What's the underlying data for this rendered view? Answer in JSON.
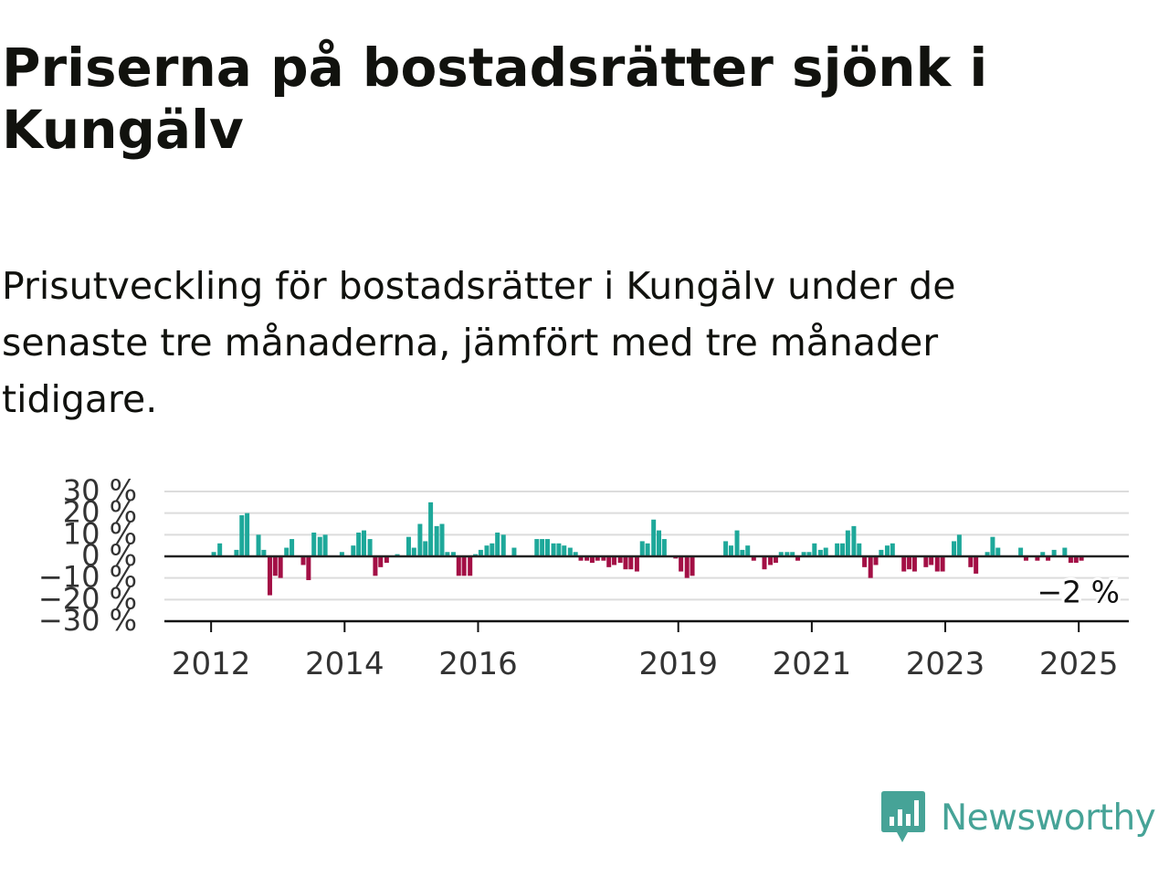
{
  "title": "Priserna på bostadsrätter sjönk i Kungälv",
  "subtitle": "Prisutveckling för bostadsrätter i Kungälv under de senaste tre månaderna, jämfört med tre månader tidigare.",
  "brand": {
    "name": "Newsworthy",
    "icon": "newsworthy-logo-icon",
    "color": "#46a397"
  },
  "colors": {
    "positive": "#1ea89a",
    "negative": "#a30f45",
    "grid": "#dcdcdc",
    "axis": "#111111",
    "text": "#333333"
  },
  "chart_data": {
    "type": "bar",
    "title": "Priserna på bostadsrätter sjönk i Kungälv",
    "subtitle": "Prisutveckling för bostadsrätter i Kungälv under de senaste tre månaderna, jämfört med tre månader tidigare.",
    "xlabel": "",
    "ylabel": "",
    "ylim": [
      -30,
      30
    ],
    "y_ticks": [
      30,
      20,
      10,
      0,
      -10,
      -20,
      -30
    ],
    "y_tick_labels": [
      "30 %",
      "20 %",
      "10 %",
      "0 %",
      "−10 %",
      "−20 %",
      "−30 %"
    ],
    "x_ticks": [
      2012,
      2014,
      2016,
      2019,
      2021,
      2023,
      2025
    ],
    "x_tick_labels": [
      "2012",
      "2014",
      "2016",
      "2019",
      "2021",
      "2023",
      "2025"
    ],
    "x_range": [
      2011.3,
      2025.75
    ],
    "grid": true,
    "legend": "none",
    "series": [
      {
        "values": [
          [
            2012.04,
            2
          ],
          [
            2012.13,
            6
          ],
          [
            2012.38,
            3
          ],
          [
            2012.46,
            19
          ],
          [
            2012.54,
            20
          ],
          [
            2012.71,
            10
          ],
          [
            2012.79,
            3
          ],
          [
            2012.88,
            -18
          ],
          [
            2012.96,
            -9
          ],
          [
            2013.04,
            -10
          ],
          [
            2013.13,
            4
          ],
          [
            2013.21,
            8
          ],
          [
            2013.38,
            -4
          ],
          [
            2013.46,
            -11
          ],
          [
            2013.54,
            11
          ],
          [
            2013.63,
            9
          ],
          [
            2013.71,
            10
          ],
          [
            2013.96,
            2
          ],
          [
            2014.13,
            5
          ],
          [
            2014.21,
            11
          ],
          [
            2014.29,
            12
          ],
          [
            2014.38,
            8
          ],
          [
            2014.46,
            -9
          ],
          [
            2014.54,
            -5
          ],
          [
            2014.63,
            -3
          ],
          [
            2014.79,
            1
          ],
          [
            2014.96,
            9
          ],
          [
            2015.04,
            4
          ],
          [
            2015.13,
            15
          ],
          [
            2015.21,
            7
          ],
          [
            2015.29,
            25
          ],
          [
            2015.38,
            14
          ],
          [
            2015.46,
            15
          ],
          [
            2015.54,
            2
          ],
          [
            2015.63,
            2
          ],
          [
            2015.71,
            -9
          ],
          [
            2015.79,
            -9
          ],
          [
            2015.88,
            -9
          ],
          [
            2015.96,
            1
          ],
          [
            2016.04,
            3
          ],
          [
            2016.13,
            5
          ],
          [
            2016.21,
            6
          ],
          [
            2016.29,
            11
          ],
          [
            2016.38,
            10
          ],
          [
            2016.54,
            4
          ],
          [
            2016.88,
            8
          ],
          [
            2016.96,
            8
          ],
          [
            2017.04,
            8
          ],
          [
            2017.13,
            6
          ],
          [
            2017.21,
            6
          ],
          [
            2017.29,
            5
          ],
          [
            2017.38,
            4
          ],
          [
            2017.46,
            2
          ],
          [
            2017.54,
            -2
          ],
          [
            2017.63,
            -2
          ],
          [
            2017.71,
            -3
          ],
          [
            2017.79,
            -2
          ],
          [
            2017.88,
            -2
          ],
          [
            2017.96,
            -5
          ],
          [
            2018.04,
            -4
          ],
          [
            2018.13,
            -3
          ],
          [
            2018.21,
            -6
          ],
          [
            2018.29,
            -6
          ],
          [
            2018.38,
            -7
          ],
          [
            2018.46,
            7
          ],
          [
            2018.54,
            6
          ],
          [
            2018.63,
            17
          ],
          [
            2018.71,
            12
          ],
          [
            2018.79,
            8
          ],
          [
            2018.96,
            -1
          ],
          [
            2019.04,
            -7
          ],
          [
            2019.13,
            -10
          ],
          [
            2019.21,
            -9
          ],
          [
            2019.71,
            7
          ],
          [
            2019.79,
            5
          ],
          [
            2019.88,
            12
          ],
          [
            2019.96,
            3
          ],
          [
            2020.04,
            5
          ],
          [
            2020.13,
            -2
          ],
          [
            2020.29,
            -6
          ],
          [
            2020.38,
            -4
          ],
          [
            2020.46,
            -3
          ],
          [
            2020.54,
            2
          ],
          [
            2020.63,
            2
          ],
          [
            2020.71,
            2
          ],
          [
            2020.79,
            -2
          ],
          [
            2020.88,
            2
          ],
          [
            2020.96,
            2
          ],
          [
            2021.04,
            6
          ],
          [
            2021.13,
            3
          ],
          [
            2021.21,
            4
          ],
          [
            2021.38,
            6
          ],
          [
            2021.46,
            6
          ],
          [
            2021.54,
            12
          ],
          [
            2021.63,
            14
          ],
          [
            2021.71,
            6
          ],
          [
            2021.79,
            -5
          ],
          [
            2021.88,
            -10
          ],
          [
            2021.96,
            -4
          ],
          [
            2022.04,
            3
          ],
          [
            2022.13,
            5
          ],
          [
            2022.21,
            6
          ],
          [
            2022.38,
            -7
          ],
          [
            2022.46,
            -6
          ],
          [
            2022.54,
            -7
          ],
          [
            2022.71,
            -5
          ],
          [
            2022.79,
            -4
          ],
          [
            2022.88,
            -7
          ],
          [
            2022.96,
            -7
          ],
          [
            2023.13,
            7
          ],
          [
            2023.21,
            10
          ],
          [
            2023.38,
            -5
          ],
          [
            2023.46,
            -8
          ],
          [
            2023.63,
            2
          ],
          [
            2023.71,
            9
          ],
          [
            2023.79,
            4
          ],
          [
            2024.13,
            4
          ],
          [
            2024.21,
            -2
          ],
          [
            2024.38,
            -2
          ],
          [
            2024.46,
            2
          ],
          [
            2024.54,
            -2
          ],
          [
            2024.63,
            3
          ],
          [
            2024.79,
            4
          ],
          [
            2024.88,
            -3
          ],
          [
            2024.96,
            -3
          ],
          [
            2025.04,
            -2
          ]
        ]
      }
    ],
    "annotations": [
      {
        "text": "−2 %",
        "x": 2025.04,
        "y": -2
      }
    ]
  }
}
